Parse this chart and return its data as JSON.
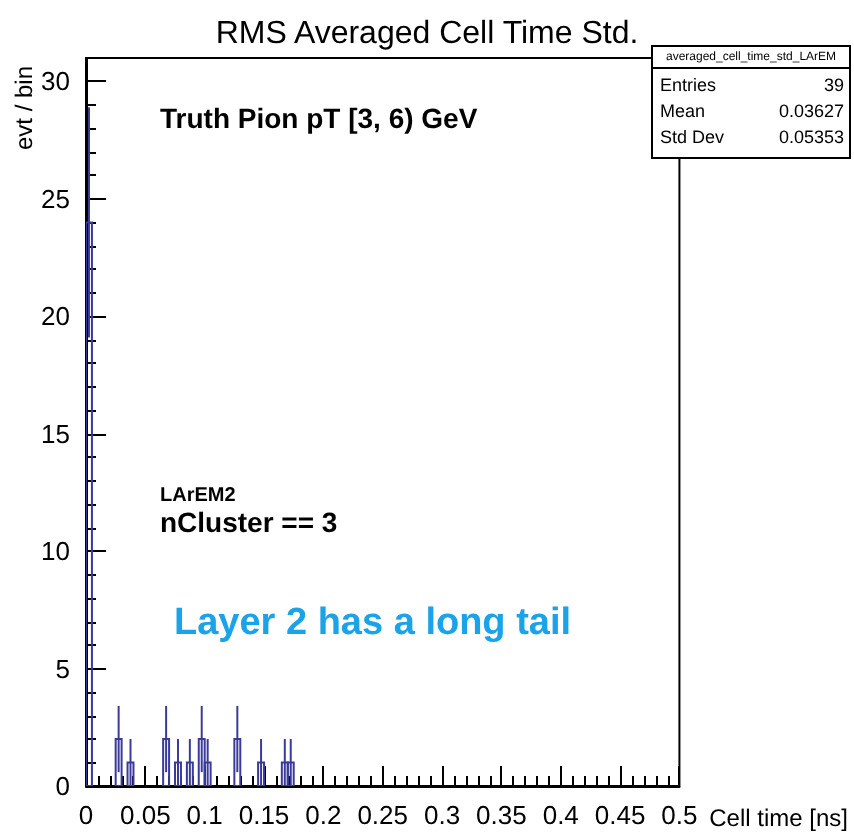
{
  "chart_data": {
    "type": "histogram",
    "title": "RMS Averaged Cell Time Std.",
    "xlabel": "Cell time [ns]",
    "ylabel": "evt / bin",
    "bins": [
      0,
      0.005,
      0.01,
      0.015,
      0.02,
      0.025,
      0.03,
      0.035,
      0.04,
      0.045,
      0.05,
      0.055,
      0.06,
      0.065,
      0.07,
      0.075,
      0.08,
      0.085,
      0.09,
      0.095,
      0.1,
      0.105,
      0.11,
      0.115,
      0.12,
      0.125,
      0.13,
      0.135,
      0.14,
      0.145,
      0.15,
      0.155,
      0.16,
      0.165,
      0.17,
      0.175,
      0.18,
      0.185,
      0.19,
      0.195,
      0.2,
      0.205,
      0.21,
      0.215,
      0.22,
      0.225,
      0.23,
      0.235,
      0.24,
      0.245,
      0.25,
      0.255,
      0.26,
      0.265,
      0.27,
      0.275,
      0.28,
      0.285,
      0.29,
      0.295,
      0.3,
      0.305,
      0.31,
      0.315,
      0.32,
      0.325,
      0.33,
      0.335,
      0.34,
      0.345,
      0.35,
      0.355,
      0.36,
      0.365,
      0.37,
      0.375,
      0.38,
      0.385,
      0.39,
      0.395,
      0.4,
      0.405,
      0.41,
      0.415,
      0.42,
      0.425,
      0.43,
      0.435,
      0.44,
      0.445,
      0.45,
      0.455,
      0.46,
      0.465,
      0.47,
      0.475,
      0.48,
      0.485,
      0.49,
      0.495,
      0.5
    ],
    "values": [
      24,
      0,
      0,
      0,
      0,
      2,
      0,
      1,
      0,
      0,
      0,
      0,
      0,
      2,
      0,
      1,
      0,
      1,
      0,
      2,
      1,
      0,
      0,
      0,
      0,
      2,
      0,
      0,
      0,
      1,
      0,
      0,
      0,
      1,
      1,
      0,
      0,
      0,
      0,
      0,
      0,
      0,
      0,
      0,
      0,
      0,
      0,
      0,
      0,
      0,
      0,
      0,
      0,
      0,
      0,
      0,
      0,
      0,
      0,
      0,
      0,
      0,
      0,
      0,
      0,
      0,
      0,
      0,
      0,
      0,
      0,
      0,
      0,
      0,
      0,
      0,
      0,
      0,
      0,
      0,
      0,
      0,
      0,
      0,
      0,
      0,
      0,
      0,
      0,
      0,
      0,
      0,
      0,
      0,
      0,
      0,
      0,
      0,
      0,
      0
    ],
    "errors": [
      4.9,
      null,
      null,
      null,
      null,
      1.41,
      null,
      1,
      null,
      null,
      null,
      null,
      null,
      1.41,
      null,
      1,
      null,
      1,
      null,
      1.41,
      1,
      null,
      null,
      null,
      null,
      1.41,
      null,
      null,
      null,
      1,
      null,
      null,
      null,
      1,
      1,
      null,
      null,
      null,
      null,
      null,
      null,
      null,
      null,
      null,
      null,
      null,
      null,
      null,
      null,
      null,
      null,
      null,
      null,
      null,
      null,
      null,
      null,
      null,
      null,
      null,
      null,
      null,
      null,
      null,
      null,
      null,
      null,
      null,
      null,
      null,
      null,
      null,
      null,
      null,
      null,
      null,
      null,
      null,
      null,
      null,
      null,
      null,
      null,
      null,
      null,
      null,
      null,
      null,
      null,
      null,
      null,
      null,
      null,
      null,
      null,
      null,
      null,
      null,
      null,
      null
    ],
    "color": "#3a3a9a",
    "xlim": [
      0,
      0.5
    ],
    "xticks": [
      0,
      0.05,
      0.1,
      0.15,
      0.2,
      0.25,
      0.3,
      0.35,
      0.4,
      0.45,
      0.5
    ],
    "ylim": [
      0,
      31
    ],
    "yticks": [
      0,
      5,
      10,
      15,
      20,
      25,
      30
    ],
    "grid": false,
    "annotations": [
      "Truth Pion pT [3, 6) GeV",
      "LArEM2",
      "nCluster == 3",
      "Layer 2 has a long tail",
      "averaged_cell_time_std_LArEM",
      "Entries",
      "39",
      "Mean",
      "0.03627",
      "Std Dev",
      "0.05353"
    ]
  }
}
